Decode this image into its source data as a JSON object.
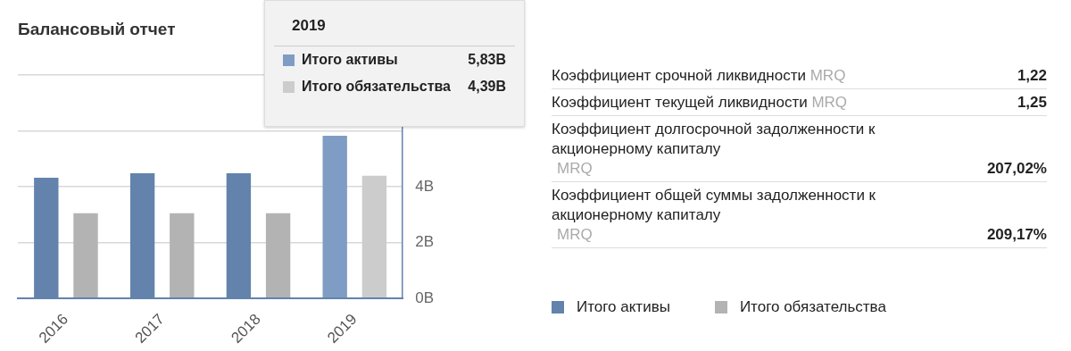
{
  "chart_data": [
    {
      "type": "bar",
      "title": "Балансовый отчет",
      "categories": [
        "2016",
        "2017",
        "2018",
        "2019"
      ],
      "series": [
        {
          "name": "Итого активы",
          "color": "#6383ad",
          "colors": [
            "#6383ad",
            "#6383ad",
            "#6383ad",
            "#7f9dc4"
          ],
          "values": [
            4.32,
            4.48,
            4.48,
            5.83
          ]
        },
        {
          "name": "Итого обязательства",
          "color": "#b3b3b3",
          "colors": [
            "#b3b3b3",
            "#b3b3b3",
            "#b3b3b3",
            "#cccccc"
          ],
          "values": [
            3.05,
            3.05,
            3.05,
            4.39
          ]
        }
      ],
      "ylim": [
        0,
        8
      ],
      "yticks": [
        {
          "value": 0,
          "label": "0B"
        },
        {
          "value": 2,
          "label": "2B"
        },
        {
          "value": 4,
          "label": "4B"
        },
        {
          "value": 6,
          "label": null
        },
        {
          "value": 8,
          "label": null
        }
      ],
      "grid": "y",
      "legend": "right",
      "annotations": [
        "2019",
        "5,83B",
        "4,39B"
      ]
    },
    {
      "type": "other",
      "categories": [
        "Коэффициент срочной ликвидности",
        "Коэффициент текущей ликвидности",
        "Коэффициент долгосрочной задолженности к акционерному капиталу",
        "Коэффициент общей суммы задолженности к акционерному капиталу"
      ],
      "value_labels": [
        "1,22",
        "1,25",
        "207,02%",
        "209,17%"
      ],
      "annotations": [
        "MRQ",
        "MRQ",
        "MRQ",
        "MRQ"
      ]
    }
  ]
}
